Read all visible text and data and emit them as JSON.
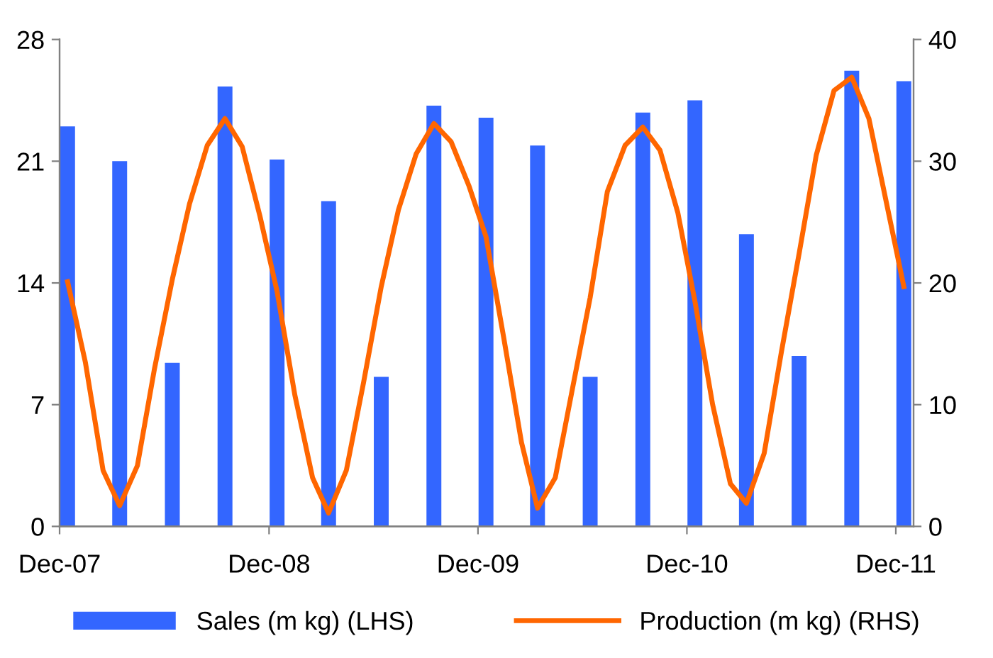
{
  "chart_data": {
    "type": "bar",
    "legend": "bottom",
    "grid": false,
    "xlim": [
      "2007-12-01",
      "2012-01-01"
    ],
    "xticks": [
      {
        "value": "2007-12-01",
        "label": "Dec-07"
      },
      {
        "value": "2008-12-01",
        "label": "Dec-08"
      },
      {
        "value": "2009-12-01",
        "label": "Dec-09"
      },
      {
        "value": "2010-12-01",
        "label": "Dec-10"
      },
      {
        "value": "2011-12-01",
        "label": "Dec-11"
      }
    ],
    "ylim": [
      0,
      28
    ],
    "yticks": [
      0,
      7,
      14,
      21,
      28
    ],
    "y2lim": [
      0,
      40
    ],
    "y2ticks": [
      0,
      10,
      20,
      30,
      40
    ],
    "series": [
      {
        "name": "Sales (m kg) (LHS)",
        "color": "#3366ff",
        "x": [
          "2007-12-15",
          "2008-03-15",
          "2008-06-15",
          "2008-09-15",
          "2008-12-15",
          "2009-03-15",
          "2009-06-15",
          "2009-09-15",
          "2009-12-15",
          "2010-03-15",
          "2010-06-15",
          "2010-09-15",
          "2010-12-15",
          "2011-03-15",
          "2011-06-15",
          "2011-09-15",
          "2011-12-15"
        ],
        "values": [
          23.0,
          21.0,
          9.4,
          25.3,
          21.1,
          18.7,
          8.6,
          24.2,
          23.5,
          21.9,
          8.6,
          23.8,
          24.5,
          16.8,
          9.8,
          26.2,
          25.6
        ]
      },
      {
        "name": "Production (m kg) (RHS)",
        "type": "line",
        "axis": "y2",
        "color": "#ff6600",
        "marker": "none",
        "line_style": "solid",
        "x": [
          "2007-12-15",
          "2008-01-15",
          "2008-02-15",
          "2008-03-15",
          "2008-04-15",
          "2008-05-15",
          "2008-06-15",
          "2008-07-15",
          "2008-08-15",
          "2008-09-15",
          "2008-10-15",
          "2008-11-15",
          "2008-12-15",
          "2009-01-15",
          "2009-02-15",
          "2009-03-15",
          "2009-04-15",
          "2009-05-15",
          "2009-06-15",
          "2009-07-15",
          "2009-08-15",
          "2009-09-15",
          "2009-10-15",
          "2009-11-15",
          "2009-12-15",
          "2010-01-15",
          "2010-02-15",
          "2010-03-15",
          "2010-04-15",
          "2010-05-15",
          "2010-06-15",
          "2010-07-15",
          "2010-08-15",
          "2010-09-15",
          "2010-10-15",
          "2010-11-15",
          "2010-12-15",
          "2011-01-15",
          "2011-02-15",
          "2011-03-15",
          "2011-04-15",
          "2011-05-15",
          "2011-06-15",
          "2011-07-15",
          "2011-08-15",
          "2011-09-15",
          "2011-10-15",
          "2011-11-15",
          "2011-12-15"
        ],
        "values": [
          20.1,
          13.5,
          4.6,
          1.7,
          5.0,
          13.0,
          20.3,
          26.5,
          31.3,
          33.5,
          31.2,
          25.5,
          19.3,
          10.8,
          4.0,
          1.1,
          4.6,
          11.8,
          19.7,
          26.0,
          30.6,
          33.1,
          31.6,
          28.0,
          23.8,
          15.5,
          6.9,
          1.5,
          4.0,
          11.3,
          18.8,
          27.5,
          31.3,
          32.8,
          30.9,
          25.8,
          18.5,
          10.0,
          3.5,
          1.9,
          6.0,
          14.3,
          22.4,
          30.5,
          35.8,
          36.9,
          33.5,
          26.5,
          19.7
        ]
      }
    ]
  }
}
